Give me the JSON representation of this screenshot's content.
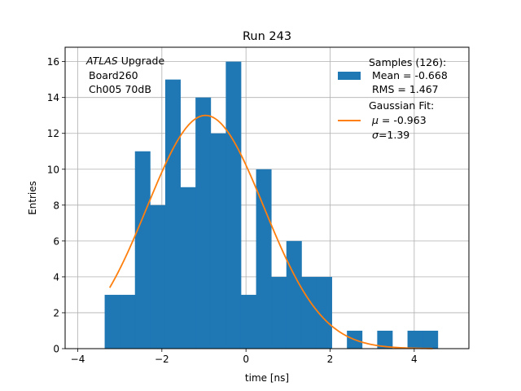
{
  "chart_data": {
    "type": "bar",
    "title": "Run 243",
    "xlabel": "time [ns]",
    "ylabel": "Entries",
    "xlim": [
      -4.3,
      5.3
    ],
    "ylim": [
      0,
      16.8
    ],
    "xticks": [
      -4,
      -2,
      0,
      2,
      4
    ],
    "xtick_labels": [
      "−4",
      "−2",
      "0",
      "2",
      "4"
    ],
    "yticks": [
      0,
      2,
      4,
      6,
      8,
      10,
      12,
      14,
      16
    ],
    "ytick_labels": [
      "0",
      "2",
      "4",
      "6",
      "8",
      "10",
      "12",
      "14",
      "16"
    ],
    "grid": true,
    "histogram": {
      "name": "Samples",
      "color": "#1f77b4",
      "bin_width": 0.36,
      "bin_starts": [
        -3.36,
        -3.0,
        -2.64,
        -2.28,
        -1.92,
        -1.56,
        -1.2,
        -0.84,
        -0.48,
        -0.12,
        0.24,
        0.6,
        0.96,
        1.32,
        1.68,
        2.04,
        2.4,
        2.76,
        3.12,
        3.48,
        3.84,
        4.2
      ],
      "counts": [
        3,
        3,
        11,
        8,
        15,
        9,
        14,
        12,
        16,
        3,
        10,
        4,
        6,
        4,
        4,
        0,
        1,
        0,
        1,
        0,
        1,
        1
      ]
    },
    "fit": {
      "name": "Gaussian Fit",
      "color": "#ff7f0e",
      "amplitude": 13.0,
      "mu": -0.963,
      "sigma": 1.39,
      "x_range": [
        -3.24,
        4.44
      ]
    },
    "annotation": {
      "italic": "ATLAS",
      "rest": " Upgrade",
      "line2": "Board260",
      "line3": "Ch005 70dB"
    },
    "legend": {
      "position": "top-right",
      "samples_lines": [
        "Samples (126):",
        "Mean = -0.668",
        "RMS = 1.467"
      ],
      "fit_title": "Gaussian Fit:",
      "fit_mu_symbol": "μ",
      "fit_mu_text": " = -0.963",
      "fit_sigma_symbol": "σ",
      "fit_sigma_text": "=1.39"
    }
  }
}
